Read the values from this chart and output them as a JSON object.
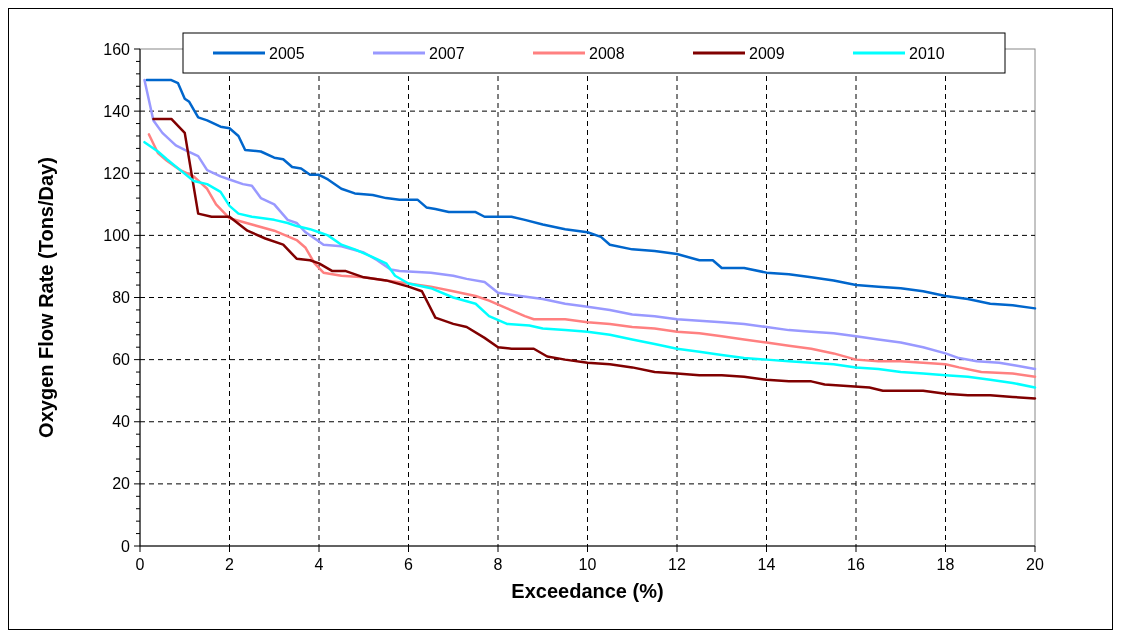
{
  "chart_data": {
    "type": "line",
    "xlabel": "Exceedance (%)",
    "ylabel": "Oxygen Flow Rate (Tons/Day)",
    "xlim": [
      0,
      20
    ],
    "ylim": [
      0,
      160
    ],
    "xticks": [
      0,
      2,
      4,
      6,
      8,
      10,
      12,
      14,
      16,
      18,
      20
    ],
    "yticks": [
      0,
      {
        "value": 4,
        "label": null
      },
      {
        "value": 8,
        "label": null
      },
      {
        "value": 12,
        "label": null
      },
      {
        "value": 16,
        "label": null
      },
      20,
      {
        "value": 24,
        "label": null
      },
      {
        "value": 28,
        "label": null
      },
      {
        "value": 32,
        "label": null
      },
      {
        "value": 36,
        "label": null
      },
      40,
      {
        "value": 44,
        "label": null
      },
      {
        "value": 48,
        "label": null
      },
      {
        "value": 52,
        "label": null
      },
      {
        "value": 56,
        "label": null
      },
      60,
      {
        "value": 64,
        "label": null
      },
      {
        "value": 68,
        "label": null
      },
      {
        "value": 72,
        "label": null
      },
      {
        "value": 76,
        "label": null
      },
      80,
      {
        "value": 84,
        "label": null
      },
      {
        "value": 88,
        "label": null
      },
      {
        "value": 92,
        "label": null
      },
      {
        "value": 96,
        "label": null
      },
      100,
      {
        "value": 104,
        "label": null
      },
      {
        "value": 108,
        "label": null
      },
      {
        "value": 112,
        "label": null
      },
      {
        "value": 116,
        "label": null
      },
      120,
      {
        "value": 124,
        "label": null
      },
      {
        "value": 128,
        "label": null
      },
      {
        "value": 132,
        "label": null
      },
      {
        "value": 136,
        "label": null
      },
      140,
      {
        "value": 144,
        "label": null
      },
      {
        "value": 148,
        "label": null
      },
      {
        "value": 152,
        "label": null
      },
      {
        "value": 156,
        "label": null
      },
      160
    ],
    "grid": true,
    "legend": "top",
    "marker": "none",
    "line_style": "solid",
    "series": [
      {
        "name": "2005",
        "color": "#0066cc",
        "x": [
          0.15,
          0.7,
          0.85,
          1.0,
          1.1,
          1.3,
          1.5,
          1.8,
          2.0,
          2.2,
          2.35,
          2.7,
          3.0,
          3.2,
          3.4,
          3.6,
          3.8,
          4.0,
          4.2,
          4.5,
          4.8,
          5.2,
          5.5,
          5.8,
          6.2,
          6.4,
          6.6,
          6.9,
          7.5,
          7.7,
          8.3,
          8.6,
          9.0,
          9.5,
          10.0,
          10.3,
          10.5,
          11,
          11.5,
          12,
          12.5,
          12.8,
          13.0,
          13.5,
          14,
          14.5,
          15,
          15.5,
          16,
          16.5,
          17,
          17.5,
          18,
          18.5,
          19,
          19.5,
          20
        ],
        "values": [
          150,
          150,
          149,
          144,
          143,
          138,
          137,
          135,
          134.5,
          132,
          127.5,
          127,
          125,
          124.5,
          122,
          121.5,
          119.5,
          119.5,
          118,
          115,
          113.5,
          113,
          112,
          111.5,
          111.5,
          109,
          108.5,
          107.5,
          107.5,
          106,
          106,
          105,
          103.5,
          102,
          101,
          99.5,
          97,
          95.5,
          95,
          94,
          92,
          92,
          89.5,
          89.5,
          88,
          87.5,
          86.5,
          85.5,
          84,
          83.5,
          83,
          82,
          80.5,
          79.5,
          78,
          77.5,
          76.5
        ]
      },
      {
        "name": "2007",
        "color": "#9999ff",
        "x": [
          0.1,
          0.3,
          0.5,
          0.8,
          1.0,
          1.3,
          1.5,
          1.8,
          2.0,
          2.3,
          2.5,
          2.7,
          3.0,
          3.3,
          3.5,
          3.7,
          4.0,
          4.1,
          4.5,
          5.0,
          5.3,
          5.6,
          5.8,
          6.5,
          7.0,
          7.3,
          7.7,
          8.0,
          8.5,
          9.0,
          9.5,
          10,
          10.5,
          11,
          11.5,
          12,
          12.5,
          13,
          13.5,
          14,
          14.5,
          15,
          15.5,
          16,
          16.5,
          17,
          17.5,
          18,
          18.3,
          18.7,
          19.2,
          19.6,
          20
        ],
        "values": [
          150,
          137,
          133,
          129,
          127.5,
          125.5,
          121,
          119,
          118,
          116.5,
          116,
          112,
          110,
          105,
          104,
          101,
          98,
          97,
          96.5,
          94.5,
          92,
          89,
          88.5,
          88,
          87,
          86,
          85,
          81.5,
          80.5,
          79.5,
          78,
          77,
          76,
          74.5,
          74,
          73,
          72.5,
          72,
          71.5,
          70.5,
          69.5,
          69,
          68.5,
          67.5,
          66.5,
          65.5,
          64,
          62,
          60.5,
          59.5,
          59,
          58,
          57
        ]
      },
      {
        "name": "2008",
        "color": "#ff8080",
        "x": [
          0.2,
          0.4,
          0.6,
          0.9,
          1.2,
          1.5,
          1.7,
          2.0,
          2.5,
          3.0,
          3.5,
          3.7,
          3.9,
          4.1,
          4.5,
          5.0,
          5.5,
          6.0,
          6.5,
          7.0,
          7.5,
          7.8,
          8.2,
          8.6,
          8.8,
          9.5,
          10,
          10.5,
          11,
          11.5,
          12,
          12.5,
          13,
          13.5,
          14,
          14.5,
          15,
          15.5,
          16,
          16.5,
          17,
          17.5,
          18,
          18.3,
          18.8,
          19.5,
          20
        ],
        "values": [
          132.5,
          126.5,
          124,
          121,
          119,
          115,
          110,
          105.5,
          103.5,
          101.5,
          98.5,
          96,
          91,
          88,
          87,
          86.5,
          85.5,
          84.5,
          83.5,
          82,
          80.5,
          79,
          76.5,
          74,
          73,
          73,
          72,
          71.5,
          70.5,
          70,
          69,
          68.5,
          67.5,
          66.5,
          65.5,
          64.5,
          63.5,
          62,
          60,
          59.5,
          59.5,
          59,
          58.5,
          57.5,
          56,
          55.5,
          54.5
        ]
      },
      {
        "name": "2009",
        "color": "#800000",
        "x": [
          0.3,
          0.7,
          1.0,
          1.3,
          1.6,
          2.0,
          2.4,
          2.8,
          3.2,
          3.5,
          3.8,
          4.0,
          4.3,
          4.6,
          5.0,
          5.5,
          6.0,
          6.3,
          6.6,
          7.0,
          7.3,
          7.7,
          8.0,
          8.3,
          8.8,
          9.1,
          9.5,
          10,
          10.5,
          11,
          11.5,
          12,
          12.5,
          13,
          13.5,
          14,
          14.5,
          15,
          15.3,
          15.8,
          16.3,
          16.6,
          17,
          17.5,
          18,
          18.5,
          19,
          19.5,
          20
        ],
        "values": [
          137.5,
          137.5,
          133,
          107,
          106,
          106,
          101.5,
          99,
          97,
          92.5,
          92,
          91,
          88.5,
          88.5,
          86.5,
          85.5,
          83.5,
          82,
          73.5,
          71.5,
          70.5,
          67,
          64,
          63.5,
          63.5,
          61,
          60,
          59,
          58.5,
          57.5,
          56,
          55.5,
          55,
          55,
          54.5,
          53.5,
          53,
          53,
          52,
          51.5,
          51,
          50,
          50,
          50,
          49,
          48.5,
          48.5,
          48,
          47.5
        ]
      },
      {
        "name": "2010",
        "color": "#00ffff",
        "x": [
          0.1,
          0.4,
          0.6,
          0.9,
          1.2,
          1.5,
          1.8,
          2.0,
          2.2,
          2.5,
          3.0,
          3.3,
          3.5,
          3.8,
          4.0,
          4.2,
          4.5,
          4.8,
          5.2,
          5.5,
          5.7,
          6.0,
          6.5,
          7.0,
          7.5,
          7.8,
          8.2,
          8.7,
          9.0,
          9.5,
          10,
          10.5,
          11,
          11.5,
          12,
          12.5,
          13,
          13.5,
          14,
          14.5,
          15,
          15.5,
          16,
          16.5,
          17,
          17.5,
          18,
          18.5,
          19,
          19.5,
          20
        ],
        "values": [
          130,
          127,
          124.5,
          121,
          117.5,
          116.5,
          114,
          109.5,
          107,
          106,
          105,
          104,
          103,
          102,
          101,
          100,
          97,
          95.5,
          93,
          91,
          87,
          84.5,
          83,
          80,
          78,
          74,
          71.5,
          71,
          70,
          69.5,
          69,
          68,
          66.5,
          65,
          63.5,
          62.5,
          61.5,
          60.5,
          60,
          59.5,
          59,
          58.5,
          57.5,
          57,
          56,
          55.5,
          55,
          54.5,
          53.5,
          52.5,
          51
        ]
      }
    ]
  }
}
